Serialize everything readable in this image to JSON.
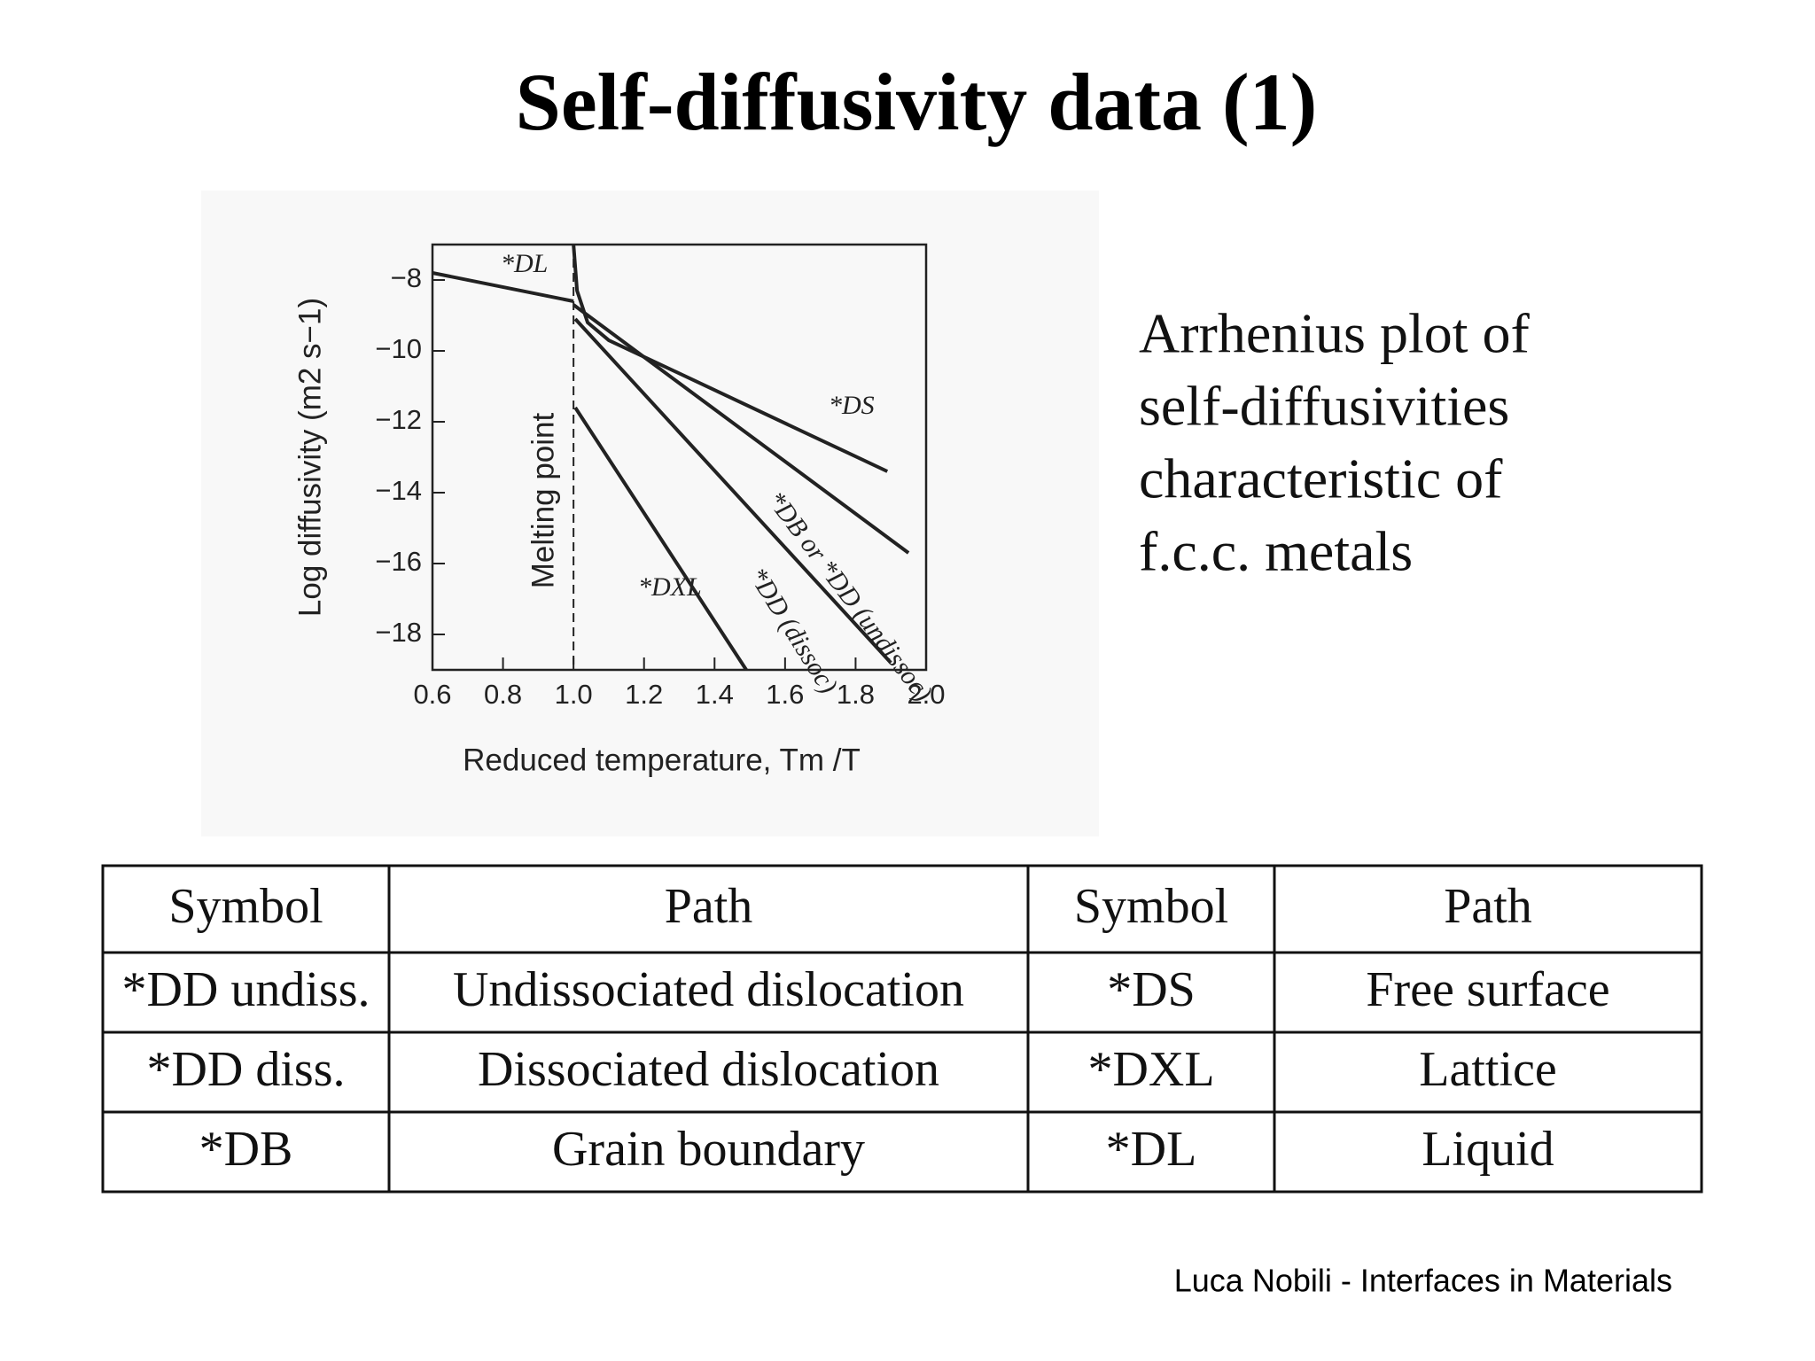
{
  "title": "Self-diffusivity data (1)",
  "chart_data": {
    "type": "line",
    "xlabel": "Reduced temperature, Tm /T",
    "ylabel": "Log diffusivity (m2 s−1)",
    "xlim": [
      0.6,
      2.0
    ],
    "xticks": [
      0.6,
      0.8,
      {
        "value": 1,
        "label": "1.0"
      },
      1.2,
      1.4,
      1.6,
      1.8,
      {
        "value": 2,
        "label": "2.0"
      }
    ],
    "ylim": [
      -19,
      -7
    ],
    "yticks": [
      {
        "value": -8,
        "label": "−8"
      },
      {
        "value": -10,
        "label": "−10"
      },
      {
        "value": -12,
        "label": "−12"
      },
      {
        "value": -14,
        "label": "−14"
      },
      {
        "value": -16,
        "label": "−16"
      },
      {
        "value": -18,
        "label": "−18"
      }
    ],
    "annotations": [
      {
        "text": "Melting point",
        "x": 1.0
      }
    ],
    "series": [
      {
        "name": "*DL",
        "color": "#222222",
        "x": [
          0.6,
          1.0
        ],
        "values": [
          -7.8,
          -8.6
        ]
      },
      {
        "name": "*DS",
        "color": "#222222",
        "x": [
          1.0,
          1.01,
          1.04,
          1.1,
          1.89
        ],
        "values": [
          -7.0,
          -8.3,
          -9.2,
          -9.7,
          -13.4
        ]
      },
      {
        "name": "*DB or *DD (undissoc)",
        "color": "#222222",
        "x": [
          1.0,
          1.95
        ],
        "values": [
          -8.7,
          -15.7
        ]
      },
      {
        "name": "*DD (dissoc)",
        "color": "#222222",
        "x": [
          1.005,
          1.9
        ],
        "values": [
          -9.1,
          -18.8
        ]
      },
      {
        "name": "*DXL",
        "color": "#222222",
        "x": [
          1.005,
          1.49
        ],
        "values": [
          -11.6,
          -19
        ]
      }
    ]
  },
  "description": [
    "Arrhenius plot of",
    "self-diffusivities",
    "characteristic of",
    "f.c.c. metals"
  ],
  "table": {
    "header": [
      "Symbol",
      "Path",
      "Symbol",
      "Path"
    ],
    "rows": [
      [
        "*DD undiss.",
        "Undissociated dislocation",
        "*DS",
        "Free surface"
      ],
      [
        "*DD diss.",
        "Dissociated dislocation",
        "*DXL",
        "Lattice"
      ],
      [
        "*DB",
        "Grain boundary",
        "*DL",
        "Liquid"
      ]
    ]
  },
  "footer": "Luca Nobili - Interfaces in Materials"
}
